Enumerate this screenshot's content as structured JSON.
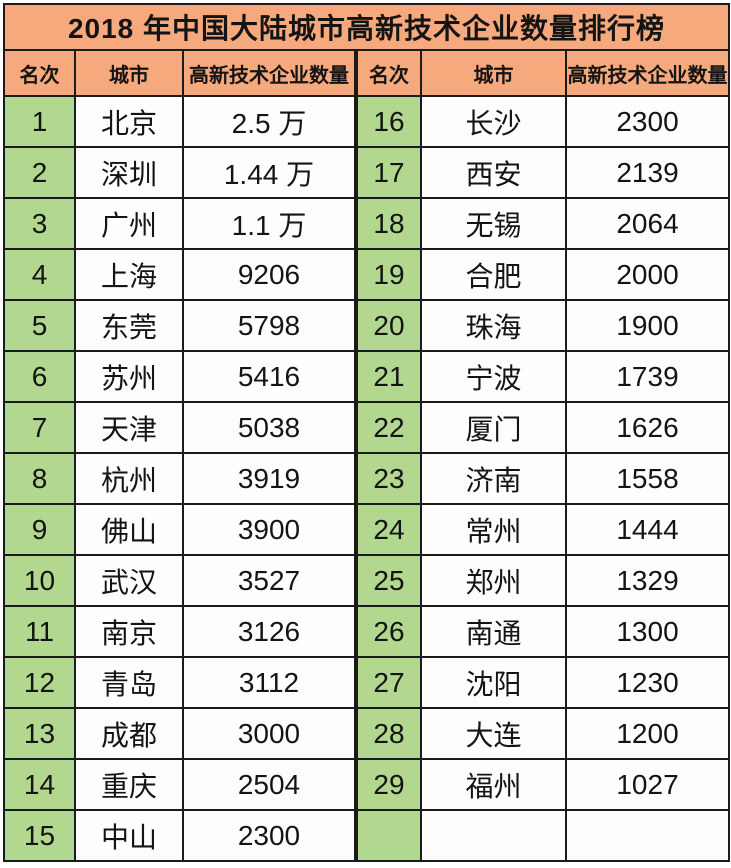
{
  "title": "2018 年中国大陆城市高新技术企业数量排行榜",
  "header": {
    "columns": [
      "名次",
      "城市",
      "高新技术企业数量",
      "名次",
      "城市",
      "高新技术企业数量"
    ]
  },
  "rows": [
    {
      "left": {
        "rank": "1",
        "city": "北京",
        "count": "2.5 万"
      },
      "right": {
        "rank": "16",
        "city": "长沙",
        "count": "2300"
      }
    },
    {
      "left": {
        "rank": "2",
        "city": "深圳",
        "count": "1.44 万"
      },
      "right": {
        "rank": "17",
        "city": "西安",
        "count": "2139"
      }
    },
    {
      "left": {
        "rank": "3",
        "city": "广州",
        "count": "1.1 万"
      },
      "right": {
        "rank": "18",
        "city": "无锡",
        "count": "2064"
      }
    },
    {
      "left": {
        "rank": "4",
        "city": "上海",
        "count": "9206"
      },
      "right": {
        "rank": "19",
        "city": "合肥",
        "count": "2000"
      }
    },
    {
      "left": {
        "rank": "5",
        "city": "东莞",
        "count": "5798"
      },
      "right": {
        "rank": "20",
        "city": "珠海",
        "count": "1900"
      }
    },
    {
      "left": {
        "rank": "6",
        "city": "苏州",
        "count": "5416"
      },
      "right": {
        "rank": "21",
        "city": "宁波",
        "count": "1739"
      }
    },
    {
      "left": {
        "rank": "7",
        "city": "天津",
        "count": "5038"
      },
      "right": {
        "rank": "22",
        "city": "厦门",
        "count": "1626"
      }
    },
    {
      "left": {
        "rank": "8",
        "city": "杭州",
        "count": "3919"
      },
      "right": {
        "rank": "23",
        "city": "济南",
        "count": "1558"
      }
    },
    {
      "left": {
        "rank": "9",
        "city": "佛山",
        "count": "3900"
      },
      "right": {
        "rank": "24",
        "city": "常州",
        "count": "1444"
      }
    },
    {
      "left": {
        "rank": "10",
        "city": "武汉",
        "count": "3527"
      },
      "right": {
        "rank": "25",
        "city": "郑州",
        "count": "1329"
      }
    },
    {
      "left": {
        "rank": "11",
        "city": "南京",
        "count": "3126"
      },
      "right": {
        "rank": "26",
        "city": "南通",
        "count": "1300"
      }
    },
    {
      "left": {
        "rank": "12",
        "city": "青岛",
        "count": "3112"
      },
      "right": {
        "rank": "27",
        "city": "沈阳",
        "count": "1230"
      }
    },
    {
      "left": {
        "rank": "13",
        "city": "成都",
        "count": "3000"
      },
      "right": {
        "rank": "28",
        "city": "大连",
        "count": "1200"
      }
    },
    {
      "left": {
        "rank": "14",
        "city": "重庆",
        "count": "2504"
      },
      "right": {
        "rank": "29",
        "city": "福州",
        "count": "1027"
      }
    },
    {
      "left": {
        "rank": "15",
        "city": "中山",
        "count": "2300"
      },
      "right": {
        "rank": "",
        "city": "",
        "count": ""
      }
    }
  ],
  "colors": {
    "title_bg": "#F5A97C",
    "rank_bg": "#B2D78F",
    "cell_bg": "#FEFDFC",
    "border": "#1B1B1B",
    "text": "#141414"
  },
  "chart_data": {
    "type": "table",
    "title": "2018 年中国大陆城市高新技术企业数量排行榜",
    "columns": [
      "名次",
      "城市",
      "高新技术企业数量"
    ],
    "rows": [
      [
        1,
        "北京",
        "2.5 万"
      ],
      [
        2,
        "深圳",
        "1.44 万"
      ],
      [
        3,
        "广州",
        "1.1 万"
      ],
      [
        4,
        "上海",
        9206
      ],
      [
        5,
        "东莞",
        5798
      ],
      [
        6,
        "苏州",
        5416
      ],
      [
        7,
        "天津",
        5038
      ],
      [
        8,
        "杭州",
        3919
      ],
      [
        9,
        "佛山",
        3900
      ],
      [
        10,
        "武汉",
        3527
      ],
      [
        11,
        "南京",
        3126
      ],
      [
        12,
        "青岛",
        3112
      ],
      [
        13,
        "成都",
        3000
      ],
      [
        14,
        "重庆",
        2504
      ],
      [
        15,
        "中山",
        2300
      ],
      [
        16,
        "长沙",
        2300
      ],
      [
        17,
        "西安",
        2139
      ],
      [
        18,
        "无锡",
        2064
      ],
      [
        19,
        "合肥",
        2000
      ],
      [
        20,
        "珠海",
        1900
      ],
      [
        21,
        "宁波",
        1739
      ],
      [
        22,
        "厦门",
        1626
      ],
      [
        23,
        "济南",
        1558
      ],
      [
        24,
        "常州",
        1444
      ],
      [
        25,
        "郑州",
        1329
      ],
      [
        26,
        "南通",
        1300
      ],
      [
        27,
        "沈阳",
        1230
      ],
      [
        28,
        "大连",
        1200
      ],
      [
        29,
        "福州",
        1027
      ]
    ]
  }
}
